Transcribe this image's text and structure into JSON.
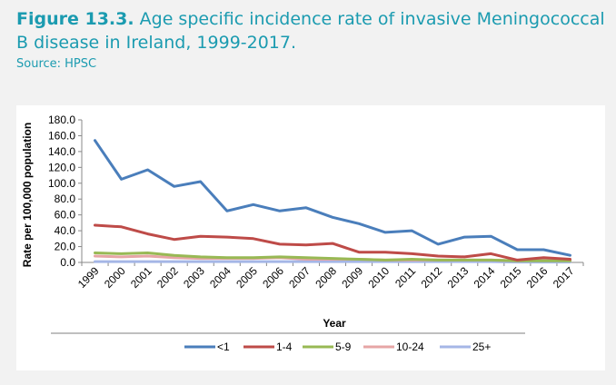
{
  "figure": {
    "number": "Figure 13.3.",
    "title": "Age specific incidence rate of invasive Meningococcal B disease in Ireland, 1999-2017.",
    "source": "Source: HPSC"
  },
  "chart_data": {
    "type": "line",
    "xlabel": "Year",
    "ylabel": "Rate per 100,000 population",
    "ylim": [
      0,
      180
    ],
    "ytick_step": 20,
    "grid": false,
    "legend_position": "bottom",
    "x": [
      "1999",
      "2000",
      "2001",
      "2002",
      "2003",
      "2004",
      "2005",
      "2006",
      "2007",
      "2008",
      "2009",
      "2010",
      "2011",
      "2012",
      "2013",
      "2014",
      "2015",
      "2016",
      "2017"
    ],
    "series": [
      {
        "name": "<1",
        "color": "#4a7ebb",
        "values": [
          154.0,
          105.0,
          117.0,
          96.0,
          102.0,
          65.0,
          73.0,
          65.0,
          69.0,
          57.0,
          49.0,
          38.0,
          40.0,
          23.0,
          32.0,
          33.0,
          16.0,
          16.0,
          9.0
        ]
      },
      {
        "name": "1-4",
        "color": "#be4b48",
        "values": [
          47.0,
          45.0,
          36.0,
          29.0,
          33.0,
          32.0,
          30.0,
          23.0,
          22.0,
          24.0,
          13.0,
          13.0,
          11.0,
          8.0,
          7.0,
          11.0,
          3.0,
          6.0,
          4.0
        ]
      },
      {
        "name": "5-9",
        "color": "#98b954",
        "values": [
          12.0,
          11.0,
          12.0,
          9.0,
          7.0,
          6.0,
          6.0,
          7.0,
          6.0,
          5.0,
          4.0,
          3.0,
          4.0,
          3.0,
          3.0,
          3.0,
          2.0,
          2.0,
          2.0
        ]
      },
      {
        "name": "10-24",
        "color": "#e6a5a5",
        "values": [
          8.0,
          7.0,
          8.0,
          6.0,
          5.0,
          5.0,
          5.0,
          6.0,
          4.0,
          4.0,
          4.0,
          3.0,
          3.0,
          3.0,
          3.0,
          3.0,
          2.0,
          4.0,
          2.0
        ]
      },
      {
        "name": "25+",
        "color": "#a5b6e6",
        "values": [
          1.0,
          1.0,
          1.0,
          1.0,
          1.0,
          1.0,
          1.0,
          1.0,
          1.0,
          1.0,
          1.0,
          1.0,
          1.0,
          1.0,
          1.0,
          1.0,
          0.5,
          0.5,
          0.5
        ]
      }
    ]
  }
}
